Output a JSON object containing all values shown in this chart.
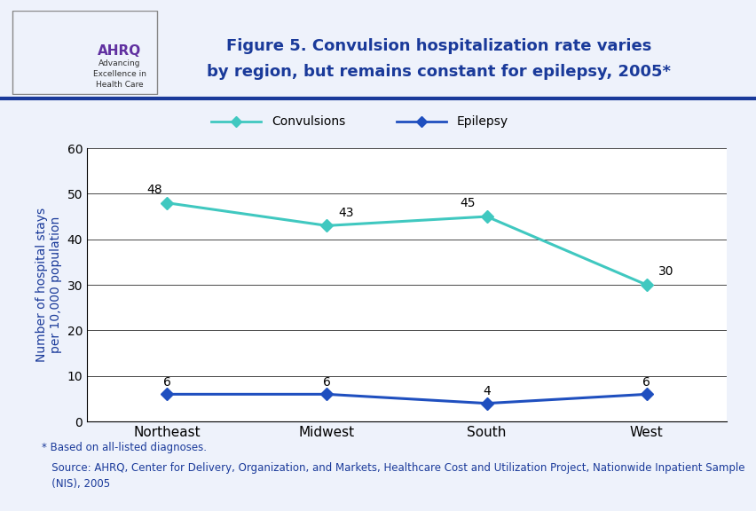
{
  "regions": [
    "Northeast",
    "Midwest",
    "South",
    "West"
  ],
  "convulsions": [
    48,
    43,
    45,
    30
  ],
  "epilepsy": [
    6,
    6,
    4,
    6
  ],
  "convulsions_color": "#40C8C0",
  "epilepsy_color": "#1F4FBF",
  "title_line1": "Figure 5. Convulsion hospitalization rate varies",
  "title_line2": "by region, but remains constant for epilepsy, 2005*",
  "ylabel": "Number of hospital stays\nper 10,000 population",
  "ylim": [
    0,
    60
  ],
  "yticks": [
    0,
    10,
    20,
    30,
    40,
    50,
    60
  ],
  "legend_labels": [
    "Convulsions",
    "Epilepsy"
  ],
  "footnote1": "* Based on all-listed diagnoses.",
  "footnote2": "   Source: AHRQ, Center for Delivery, Organization, and Markets, Healthcare Cost and Utilization Project, Nationwide Inpatient Sample\n   (NIS), 2005",
  "background_color": "#EEF2FB",
  "plot_bg_color": "#FFFFFF",
  "title_color": "#1A3A9A",
  "header_line_color": "#1A3A9A",
  "footnote_color": "#1A3A9A",
  "ylabel_color": "#1A3A9A"
}
